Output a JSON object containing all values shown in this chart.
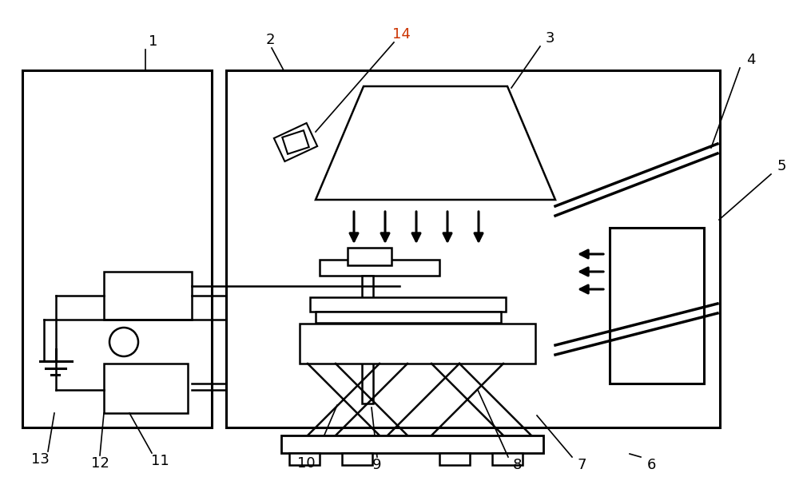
{
  "bg_color": "#ffffff",
  "line_color": "#000000",
  "label14_color": "#cc3300",
  "fig_width": 10.0,
  "fig_height": 6.07
}
